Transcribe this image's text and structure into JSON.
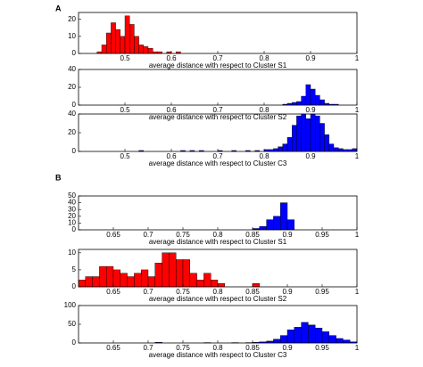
{
  "chart_data": [
    {
      "type": "histogram",
      "panel_label": "A",
      "xlabel": "average distance with respect to Cluster S1",
      "color": "#ff0000",
      "bins": [
        0.44,
        0.45,
        0.46,
        0.47,
        0.48,
        0.49,
        0.5,
        0.51,
        0.52,
        0.53,
        0.54,
        0.55,
        0.56,
        0.57,
        0.58,
        0.59,
        0.6,
        0.61,
        0.62
      ],
      "counts": [
        1,
        5,
        12,
        18,
        14,
        10,
        22,
        17,
        10,
        5,
        4,
        3,
        1,
        1,
        0,
        1,
        0,
        1
      ],
      "xlim": [
        0.4,
        1
      ],
      "xticks": [
        0.5,
        0.6,
        0.7,
        0.8,
        0.9,
        1
      ],
      "ylim": [
        0,
        24
      ],
      "yticks": [
        0,
        10,
        20
      ]
    },
    {
      "type": "histogram",
      "xlabel": "average distance with respect to Cluster S2",
      "color": "#0000ff",
      "bins": [
        0.84,
        0.85,
        0.86,
        0.87,
        0.88,
        0.89,
        0.9,
        0.91,
        0.92,
        0.93,
        0.94,
        0.95,
        0.96
      ],
      "counts": [
        1,
        2,
        3,
        4,
        10,
        23,
        18,
        11,
        6,
        2,
        1,
        1
      ],
      "xlim": [
        0.4,
        1
      ],
      "xticks": [
        0.5,
        0.6,
        0.7,
        0.8,
        0.9,
        1
      ],
      "ylim": [
        0,
        40
      ],
      "yticks": [
        0,
        20,
        40
      ]
    },
    {
      "type": "histogram",
      "xlabel": "average distance with respect to Cluster C3",
      "color": "#0000ff",
      "bins": [
        0.53,
        0.54,
        0.55,
        0.56,
        0.57,
        0.58,
        0.59,
        0.6,
        0.61,
        0.62,
        0.63,
        0.64,
        0.65,
        0.66,
        0.67,
        0.68,
        0.69,
        0.7,
        0.71,
        0.72,
        0.73,
        0.74,
        0.75,
        0.76,
        0.77,
        0.78,
        0.79,
        0.8,
        0.81,
        0.82,
        0.83,
        0.84,
        0.85,
        0.86,
        0.87,
        0.88,
        0.89,
        0.9,
        0.91,
        0.92,
        0.93,
        0.94,
        0.95,
        0.96,
        0.97,
        0.98,
        0.99,
        1
      ],
      "counts": [
        1,
        0,
        0,
        0,
        0,
        0,
        0,
        0,
        0,
        1,
        0,
        1,
        0,
        1,
        0,
        0,
        0,
        1,
        0,
        0,
        1,
        0,
        0,
        1,
        0,
        1,
        0,
        2,
        2,
        3,
        5,
        8,
        15,
        28,
        38,
        40,
        35,
        40,
        38,
        30,
        18,
        8,
        4,
        3,
        2,
        2,
        3
      ],
      "xlim": [
        0.4,
        1
      ],
      "xticks": [
        0.5,
        0.6,
        0.7,
        0.8,
        0.9,
        1
      ],
      "ylim": [
        0,
        40
      ],
      "yticks": [
        0,
        20,
        40
      ]
    },
    {
      "type": "histogram",
      "panel_label": "B",
      "xlabel": "average distance with respect to Cluster S1",
      "color": "#0000ff",
      "bins": [
        0.85,
        0.86,
        0.87,
        0.88,
        0.89,
        0.9,
        0.91
      ],
      "counts": [
        2,
        5,
        15,
        20,
        40,
        15
      ],
      "xlim": [
        0.6,
        1
      ],
      "xticks": [
        0.65,
        0.7,
        0.75,
        0.8,
        0.85,
        0.9,
        0.95,
        1
      ],
      "ylim": [
        0,
        50
      ],
      "yticks": [
        0,
        10,
        20,
        30,
        40,
        50
      ]
    },
    {
      "type": "histogram",
      "xlabel": "average distance with respect to Cluster S2",
      "color": "#ff0000",
      "bins": [
        0.6,
        0.61,
        0.62,
        0.63,
        0.64,
        0.65,
        0.66,
        0.67,
        0.68,
        0.69,
        0.7,
        0.71,
        0.72,
        0.73,
        0.74,
        0.75,
        0.76,
        0.77,
        0.78,
        0.79,
        0.8,
        0.81,
        0.82,
        0.83,
        0.84,
        0.85,
        0.86
      ],
      "counts": [
        2,
        3,
        3,
        6,
        6,
        5,
        4,
        3,
        4,
        5,
        3,
        7,
        10,
        10,
        8,
        8,
        4,
        2,
        4,
        2,
        1,
        0,
        0,
        0,
        0,
        1
      ],
      "xlim": [
        0.6,
        1
      ],
      "xticks": [
        0.65,
        0.7,
        0.75,
        0.8,
        0.85,
        0.9,
        0.95,
        1
      ],
      "ylim": [
        0,
        11
      ],
      "yticks": [
        0,
        5,
        10
      ]
    },
    {
      "type": "histogram",
      "xlabel": "average distance with respect to Cluster C3",
      "color": "#0000ff",
      "bins": [
        0.71,
        0.72,
        0.73,
        0.74,
        0.75,
        0.76,
        0.77,
        0.78,
        0.79,
        0.8,
        0.81,
        0.82,
        0.83,
        0.84,
        0.85,
        0.86,
        0.87,
        0.88,
        0.89,
        0.9,
        0.91,
        0.92,
        0.93,
        0.94,
        0.95,
        0.96,
        0.97,
        0.98,
        0.99,
        1
      ],
      "counts": [
        2,
        0,
        0,
        0,
        0,
        0,
        0,
        1,
        0,
        0,
        0,
        1,
        0,
        1,
        2,
        3,
        5,
        10,
        20,
        35,
        42,
        55,
        48,
        40,
        30,
        20,
        12,
        8,
        3
      ],
      "xlim": [
        0.6,
        1
      ],
      "xticks": [
        0.65,
        0.7,
        0.75,
        0.8,
        0.85,
        0.9,
        0.95,
        1
      ],
      "ylim": [
        0,
        100
      ],
      "yticks": [
        0,
        50,
        100
      ]
    }
  ]
}
